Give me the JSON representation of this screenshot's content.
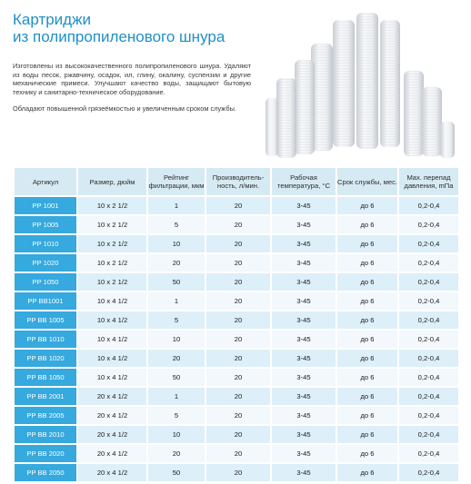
{
  "header": {
    "title_line1": "Картриджи",
    "title_line2": "из полипропиленового шнура"
  },
  "description": {
    "paragraph1": "Изготовлены из высококачественного полипропиленового шнура. Удаляют из воды песок, ржавчину, осадок, ил, глину, окалину, суспензии и другие механические примеси. Улучшают качество воды, защищают бытовую технику и санитарно-техническое оборудование.",
    "paragraph2": "Обладают повышенной грязеёмкостью и увеличенным сроком службы."
  },
  "photo": {
    "icon": "filter-cartridges-photo",
    "colors": [
      "#f4f6f8",
      "#d9dde2",
      "#e9ecef"
    ]
  },
  "table": {
    "header_color": "#d6eaf3",
    "accent_color": "#36a9de",
    "columns": [
      "Артикул",
      "Размер, дюйм",
      "Рейтинг фильтрации, мкм",
      "Производитель-ность, л/мин.",
      "Рабочая температура, °С",
      "Срок службы, мес.",
      "Max. перепад давления, mПа"
    ],
    "rows": [
      [
        "PP 1001",
        "10 x 2 1/2",
        "1",
        "20",
        "3-45",
        "до 6",
        "0,2-0,4"
      ],
      [
        "PP 1005",
        "10 x 2 1/2",
        "5",
        "20",
        "3-45",
        "до 6",
        "0,2-0,4"
      ],
      [
        "PP 1010",
        "10 x 2 1/2",
        "10",
        "20",
        "3-45",
        "до 6",
        "0,2-0,4"
      ],
      [
        "PP 1020",
        "10 x 2 1/2",
        "20",
        "20",
        "3-45",
        "до 6",
        "0,2-0,4"
      ],
      [
        "PP 1050",
        "10 x 2 1/2",
        "50",
        "20",
        "3-45",
        "до 6",
        "0,2-0,4"
      ],
      [
        "PP BB1001",
        "10 x 4 1/2",
        "1",
        "20",
        "3-45",
        "до 6",
        "0,2-0,4"
      ],
      [
        "PP BB 1005",
        "10 x 4 1/2",
        "5",
        "20",
        "3-45",
        "до 6",
        "0,2-0,4"
      ],
      [
        "PP BB 1010",
        "10 x 4 1/2",
        "10",
        "20",
        "3-45",
        "до 6",
        "0,2-0,4"
      ],
      [
        "PP BB 1020",
        "10 x 4 1/2",
        "20",
        "20",
        "3-45",
        "до 6",
        "0,2-0,4"
      ],
      [
        "PP BB 1050",
        "10 x 4 1/2",
        "50",
        "20",
        "3-45",
        "до 6",
        "0,2-0,4"
      ],
      [
        "PP BB 2001",
        "20 x 4 1/2",
        "1",
        "20",
        "3-45",
        "до 6",
        "0,2-0,4"
      ],
      [
        "PP BB 2005",
        "20 x 4 1/2",
        "5",
        "20",
        "3-45",
        "до 6",
        "0,2-0,4"
      ],
      [
        "PP BB 2010",
        "20 x 4 1/2",
        "10",
        "20",
        "3-45",
        "до 6",
        "0,2-0,4"
      ],
      [
        "PP BB 2020",
        "20 x 4 1/2",
        "20",
        "20",
        "3-45",
        "до 6",
        "0,2-0,4"
      ],
      [
        "PP BB 2050",
        "20 x 4 1/2",
        "50",
        "20",
        "3-45",
        "до 6",
        "0,2-0,4"
      ]
    ]
  }
}
